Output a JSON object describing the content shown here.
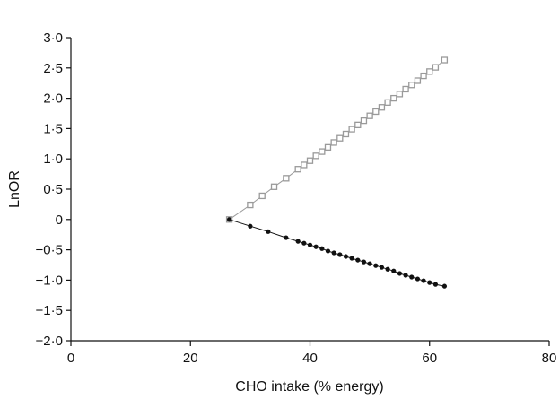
{
  "chart_data": {
    "type": "scatter",
    "title": "",
    "xlabel": "CHO intake (% energy)",
    "ylabel": "LnOR",
    "xlim": [
      0,
      80
    ],
    "ylim": [
      -2.0,
      3.0
    ],
    "x_ticks": [
      0,
      20,
      40,
      60,
      80
    ],
    "x_tick_labels": [
      "0",
      "20",
      "40",
      "60",
      "80"
    ],
    "y_ticks": [
      3.0,
      2.5,
      2.0,
      1.5,
      1.0,
      0.5,
      0,
      -0.5,
      -1.0,
      -1.5,
      -2.0
    ],
    "y_tick_labels": [
      "3·0",
      "2·5",
      "2·0",
      "1·5",
      "1·0",
      "0·5",
      "0",
      "−0·5",
      "−1·0",
      "−1·5",
      "−2·0"
    ],
    "grid": false,
    "legend": "none",
    "series": [
      {
        "marker": "open-square",
        "color": "#9a9a9a",
        "x": [
          26.5,
          30,
          32,
          34,
          36,
          38,
          39,
          40,
          41,
          42,
          43,
          44,
          45,
          46,
          47,
          48,
          49,
          50,
          51,
          52,
          53,
          54,
          55,
          56,
          57,
          58,
          59,
          60,
          61,
          62.5
        ],
        "y": [
          0,
          0.24,
          0.39,
          0.54,
          0.68,
          0.83,
          0.9,
          0.97,
          1.05,
          1.12,
          1.19,
          1.27,
          1.34,
          1.41,
          1.49,
          1.56,
          1.63,
          1.71,
          1.78,
          1.85,
          1.93,
          2.0,
          2.07,
          2.15,
          2.22,
          2.29,
          2.37,
          2.44,
          2.51,
          2.63
        ]
      },
      {
        "marker": "filled-circle",
        "color": "#111111",
        "x": [
          26.5,
          30,
          33,
          36,
          38,
          39,
          40,
          41,
          42,
          43,
          44,
          45,
          46,
          47,
          48,
          49,
          50,
          51,
          52,
          53,
          54,
          55,
          56,
          57,
          58,
          59,
          60,
          61,
          62.5
        ],
        "y": [
          0,
          -0.11,
          -0.2,
          -0.3,
          -0.36,
          -0.39,
          -0.42,
          -0.45,
          -0.48,
          -0.52,
          -0.55,
          -0.58,
          -0.61,
          -0.64,
          -0.67,
          -0.7,
          -0.73,
          -0.76,
          -0.79,
          -0.82,
          -0.85,
          -0.89,
          -0.92,
          -0.95,
          -0.98,
          -1.01,
          -1.04,
          -1.07,
          -1.1
        ]
      }
    ]
  }
}
